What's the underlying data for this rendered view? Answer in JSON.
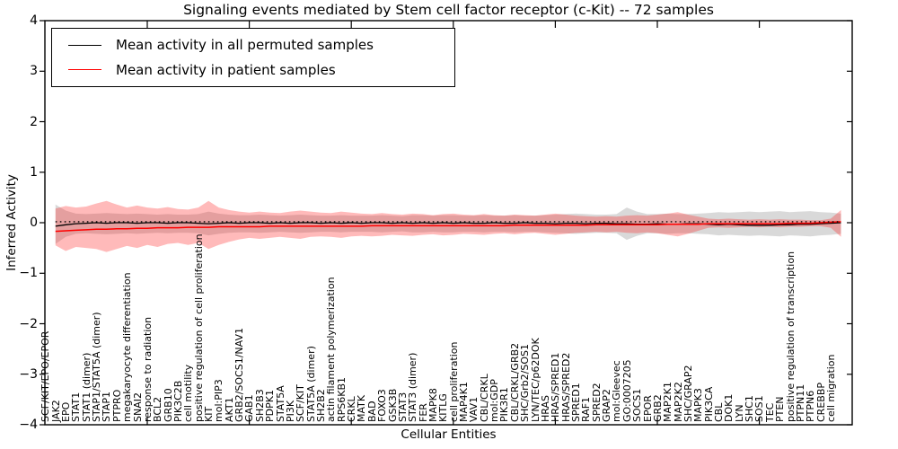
{
  "title": "Signaling events mediated by Stem cell factor receptor (c-Kit) -- 72 samples",
  "axes": {
    "ylabel": "Inferred Activity",
    "xlabel": "Cellular Entities",
    "ylim": [
      -4,
      4
    ],
    "yticks": [
      4,
      3,
      2,
      1,
      0,
      -1,
      -2,
      -3,
      -4
    ],
    "xtick_entity_positions": [
      10,
      20,
      30,
      40,
      50,
      60,
      70
    ]
  },
  "legend": {
    "items": [
      {
        "label": "Mean activity in all permuted samples",
        "color": "#000000"
      },
      {
        "label": "Mean activity in patient samples",
        "color": "#ff0000"
      }
    ]
  },
  "colors": {
    "background": "#ffffff",
    "axis": "#000000",
    "permuted_line": "#000000",
    "patient_line": "#ff0000",
    "permuted_band": "#808080",
    "permuted_band_alpha": 0.3,
    "patient_band": "#ff1a1a",
    "patient_band_alpha": 0.3,
    "reference_line": "#000000"
  },
  "chart_data": {
    "type": "line",
    "title": "Signaling events mediated by Stem cell factor receptor (c-Kit) -- 72 samples",
    "xlabel": "Cellular Entities",
    "ylabel": "Inferred Activity",
    "ylim": [
      -4,
      4
    ],
    "grid": false,
    "legend_position": "upper left",
    "categories": [
      "SCF/KIT/EPO/EPOR",
      "JAK2",
      "EPO",
      "STAT1",
      "STAT1 (dimer)",
      "STAP1/STAT5A (dimer)",
      "STAP1",
      "PTPRO",
      "megakaryocyte differentiation",
      "SNAI2",
      "response to radiation",
      "BCL2",
      "GRB10",
      "PIK3C2B",
      "cell motility",
      "positive regulation of cell proliferation",
      "KIT",
      "mol:PIP3",
      "AKT1",
      "GRB2/SOCS1/NAV1",
      "GAB1",
      "SH2B3",
      "PDPK1",
      "STAT5A",
      "PI3K",
      "SCF/KIT",
      "STAT5A (dimer)",
      "SH2B2",
      "actin filament polymerization",
      "RPS6KB1",
      "CRKL",
      "MATK",
      "BAD",
      "FOXO3",
      "GSK3B",
      "STAT3",
      "STAT3 (dimer)",
      "FER",
      "MAPK8",
      "KITLG",
      "cell proliferation",
      "MAP4K1",
      "VAV1",
      "CBL/CRKL",
      "mol:GDP",
      "PIK3R1",
      "CBL/CRKL/GRB2",
      "SHC/Grb2/SOS1",
      "LYN/TEC/p62DOK",
      "HRAS",
      "HRAS/SPRED1",
      "HRAS/SPRED2",
      "SPRED1",
      "RAF1",
      "SPRED2",
      "GRAP2",
      "mol:Gleevec",
      "GO:0007205",
      "SOCS1",
      "EPOR",
      "GRB2",
      "MAP2K1",
      "MAP2K2",
      "SHC/GRAP2",
      "MAPK3",
      "PIK3CA",
      "CBL",
      "DOK1",
      "LYN",
      "SHC1",
      "SOS1",
      "TEC",
      "PTEN",
      "positive regulation of transcription",
      "PTPN11",
      "PTPN6",
      "CREBBP",
      "cell migration"
    ],
    "series": [
      {
        "name": "Mean activity in all permuted samples",
        "color": "#000000",
        "style": "solid",
        "values": [
          -0.07,
          -0.04,
          -0.02,
          -0.01,
          0,
          -0.01,
          0,
          0,
          -0.01,
          0,
          0,
          -0.01,
          0,
          0,
          -0.01,
          -0.02,
          -0.01,
          0,
          -0.01,
          0,
          0,
          -0.01,
          0,
          -0.01,
          0,
          0,
          -0.01,
          0,
          -0.01,
          0,
          -0.01,
          0,
          0,
          -0.01,
          0,
          -0.01,
          0,
          -0.01,
          0,
          -0.01,
          0,
          -0.01,
          -0.01,
          0,
          -0.01,
          -0.01,
          0,
          -0.01,
          -0.01,
          -0.02,
          -0.01,
          -0.01,
          -0.02,
          -0.01,
          -0.01,
          -0.02,
          -0.02,
          -0.03,
          -0.03,
          -0.02,
          -0.03,
          -0.03,
          -0.02,
          -0.02,
          -0.03,
          -0.04,
          -0.03,
          -0.04,
          -0.05,
          -0.05,
          -0.05,
          -0.04,
          -0.04,
          -0.03,
          -0.03,
          -0.02,
          -0.01,
          0
        ]
      },
      {
        "name": "Mean activity in patient samples",
        "color": "#ff0000",
        "style": "solid",
        "values": [
          -0.17,
          -0.16,
          -0.15,
          -0.14,
          -0.13,
          -0.13,
          -0.12,
          -0.12,
          -0.11,
          -0.11,
          -0.1,
          -0.1,
          -0.1,
          -0.09,
          -0.09,
          -0.09,
          -0.08,
          -0.08,
          -0.08,
          -0.08,
          -0.08,
          -0.07,
          -0.07,
          -0.07,
          -0.07,
          -0.07,
          -0.07,
          -0.07,
          -0.07,
          -0.07,
          -0.07,
          -0.06,
          -0.06,
          -0.06,
          -0.06,
          -0.06,
          -0.06,
          -0.06,
          -0.06,
          -0.06,
          -0.06,
          -0.06,
          -0.06,
          -0.06,
          -0.06,
          -0.05,
          -0.05,
          -0.05,
          -0.05,
          -0.05,
          -0.05,
          -0.05,
          -0.05,
          -0.04,
          -0.04,
          -0.04,
          -0.04,
          -0.04,
          -0.04,
          -0.04,
          -0.03,
          -0.03,
          -0.03,
          -0.03,
          -0.02,
          -0.02,
          -0.02,
          -0.02,
          -0.02,
          -0.02,
          -0.02,
          -0.02,
          -0.01,
          -0.01,
          -0.01,
          0,
          0.01,
          0.02
        ]
      },
      {
        "name": "Permuted samples range",
        "color": "#808080",
        "style": "band",
        "upper": [
          0.36,
          0.24,
          0.18,
          0.17,
          0.18,
          0.19,
          0.18,
          0.17,
          0.18,
          0.17,
          0.16,
          0.17,
          0.16,
          0.16,
          0.17,
          0.22,
          0.18,
          0.16,
          0.15,
          0.15,
          0.16,
          0.15,
          0.14,
          0.15,
          0.16,
          0.15,
          0.14,
          0.14,
          0.15,
          0.14,
          0.14,
          0.14,
          0.15,
          0.14,
          0.13,
          0.15,
          0.15,
          0.14,
          0.15,
          0.15,
          0.14,
          0.14,
          0.15,
          0.14,
          0.14,
          0.15,
          0.14,
          0.14,
          0.15,
          0.16,
          0.17,
          0.18,
          0.17,
          0.16,
          0.16,
          0.17,
          0.3,
          0.22,
          0.17,
          0.17,
          0.18,
          0.17,
          0.17,
          0.18,
          0.19,
          0.21,
          0.2,
          0.21,
          0.22,
          0.21,
          0.22,
          0.23,
          0.21,
          0.22,
          0.23,
          0.21,
          0.2,
          0.18
        ],
        "lower": [
          -0.42,
          -0.28,
          -0.22,
          -0.21,
          -0.22,
          -0.23,
          -0.22,
          -0.21,
          -0.22,
          -0.21,
          -0.2,
          -0.21,
          -0.2,
          -0.2,
          -0.21,
          -0.25,
          -0.22,
          -0.2,
          -0.19,
          -0.19,
          -0.2,
          -0.19,
          -0.18,
          -0.19,
          -0.2,
          -0.19,
          -0.18,
          -0.18,
          -0.19,
          -0.18,
          -0.18,
          -0.18,
          -0.19,
          -0.18,
          -0.17,
          -0.19,
          -0.19,
          -0.18,
          -0.19,
          -0.19,
          -0.18,
          -0.18,
          -0.19,
          -0.18,
          -0.18,
          -0.19,
          -0.18,
          -0.18,
          -0.19,
          -0.2,
          -0.21,
          -0.22,
          -0.21,
          -0.2,
          -0.2,
          -0.21,
          -0.34,
          -0.26,
          -0.21,
          -0.21,
          -0.22,
          -0.21,
          -0.21,
          -0.22,
          -0.23,
          -0.25,
          -0.24,
          -0.25,
          -0.26,
          -0.25,
          -0.26,
          -0.27,
          -0.25,
          -0.26,
          -0.27,
          -0.25,
          -0.24,
          -0.22
        ]
      },
      {
        "name": "Patient samples range",
        "color": "#ff1a1a",
        "style": "band",
        "upper": [
          0.28,
          0.33,
          0.3,
          0.32,
          0.38,
          0.43,
          0.36,
          0.3,
          0.34,
          0.3,
          0.28,
          0.31,
          0.27,
          0.26,
          0.3,
          0.43,
          0.3,
          0.25,
          0.22,
          0.2,
          0.22,
          0.2,
          0.19,
          0.22,
          0.24,
          0.22,
          0.2,
          0.19,
          0.22,
          0.2,
          0.18,
          0.17,
          0.19,
          0.17,
          0.16,
          0.18,
          0.17,
          0.15,
          0.17,
          0.18,
          0.16,
          0.15,
          0.17,
          0.15,
          0.14,
          0.16,
          0.15,
          0.14,
          0.16,
          0.18,
          0.16,
          0.14,
          0.13,
          0.12,
          0.13,
          0.12,
          0.14,
          0.15,
          0.14,
          0.16,
          0.18,
          0.21,
          0.16,
          0.12,
          0.08,
          0.07,
          0.08,
          0.07,
          0.06,
          0.07,
          0.06,
          0.07,
          0.06,
          0.06,
          0.05,
          0.05,
          0.08,
          0.25
        ],
        "lower": [
          -0.45,
          -0.56,
          -0.48,
          -0.5,
          -0.52,
          -0.58,
          -0.52,
          -0.46,
          -0.5,
          -0.44,
          -0.48,
          -0.42,
          -0.4,
          -0.44,
          -0.4,
          -0.52,
          -0.44,
          -0.38,
          -0.33,
          -0.3,
          -0.32,
          -0.3,
          -0.28,
          -0.3,
          -0.32,
          -0.28,
          -0.27,
          -0.28,
          -0.3,
          -0.27,
          -0.26,
          -0.27,
          -0.26,
          -0.24,
          -0.25,
          -0.26,
          -0.24,
          -0.23,
          -0.25,
          -0.24,
          -0.22,
          -0.23,
          -0.24,
          -0.22,
          -0.21,
          -0.23,
          -0.21,
          -0.2,
          -0.22,
          -0.24,
          -0.22,
          -0.2,
          -0.19,
          -0.18,
          -0.19,
          -0.18,
          -0.2,
          -0.21,
          -0.19,
          -0.21,
          -0.24,
          -0.27,
          -0.22,
          -0.16,
          -0.1,
          -0.09,
          -0.1,
          -0.09,
          -0.08,
          -0.09,
          -0.08,
          -0.09,
          -0.08,
          -0.08,
          -0.07,
          -0.07,
          -0.1,
          -0.28
        ]
      },
      {
        "name": "Reference",
        "color": "#000000",
        "style": "dotted",
        "value": 0.02
      }
    ]
  }
}
